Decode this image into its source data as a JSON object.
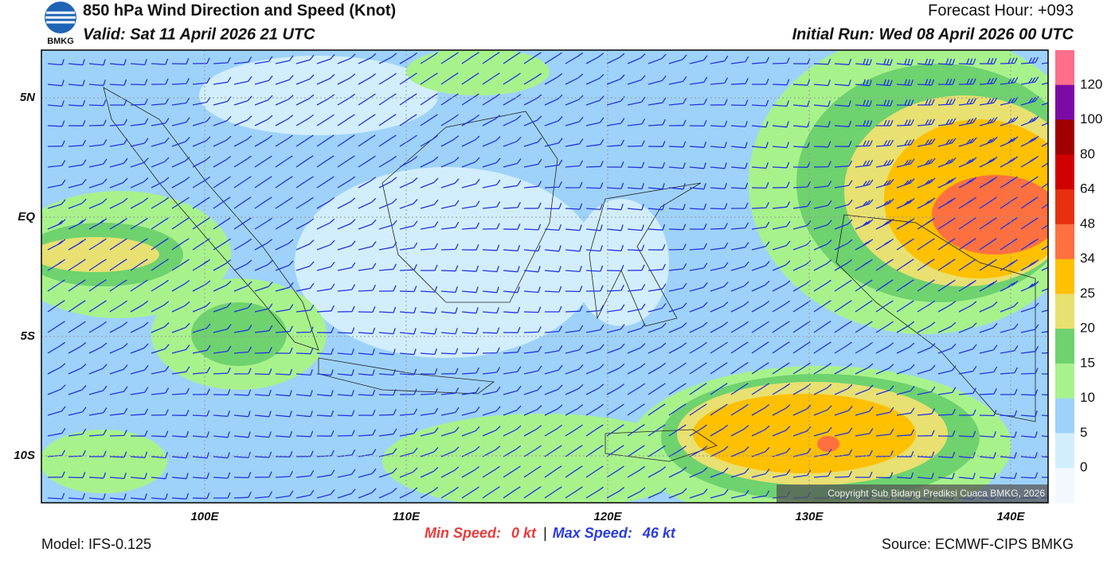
{
  "header": {
    "logo": "BMKG",
    "title": "850 hPa Wind Direction and Speed (Knot)",
    "valid": "Valid: Sat 11 April 2026 21 UTC",
    "forecast_hour": "Forecast Hour: +093",
    "initial_run": "Initial Run: Wed 08 April 2026 00 UTC"
  },
  "map": {
    "lat_labels": [
      "5N",
      "EQ",
      "5S",
      "10S"
    ],
    "lon_labels": [
      "100E",
      "110E",
      "120E",
      "130E",
      "140E"
    ],
    "copyright": "Copyright Sub Bidang Prediksi Cuaca BMKG, 2026"
  },
  "colorbar": {
    "colors": [
      "#ff6e8a",
      "#7d0aa6",
      "#a00000",
      "#d00000",
      "#e83010",
      "#ff7040",
      "#ffc000",
      "#e8e070",
      "#6ed26e",
      "#a8f28c",
      "#9ed2fa",
      "#d2eefc",
      "#f2f8fe"
    ],
    "labels": [
      "120",
      "100",
      "80",
      "64",
      "48",
      "34",
      "25",
      "20",
      "15",
      "10",
      "5",
      "0"
    ]
  },
  "footer": {
    "min_label": "Min Speed:",
    "min_value": "0 kt",
    "separator": "|",
    "max_label": "Max Speed:",
    "max_value": "46 kt",
    "model": "Model: IFS-0.125",
    "source": "Source: ECMWF-CIPS BMKG"
  }
}
